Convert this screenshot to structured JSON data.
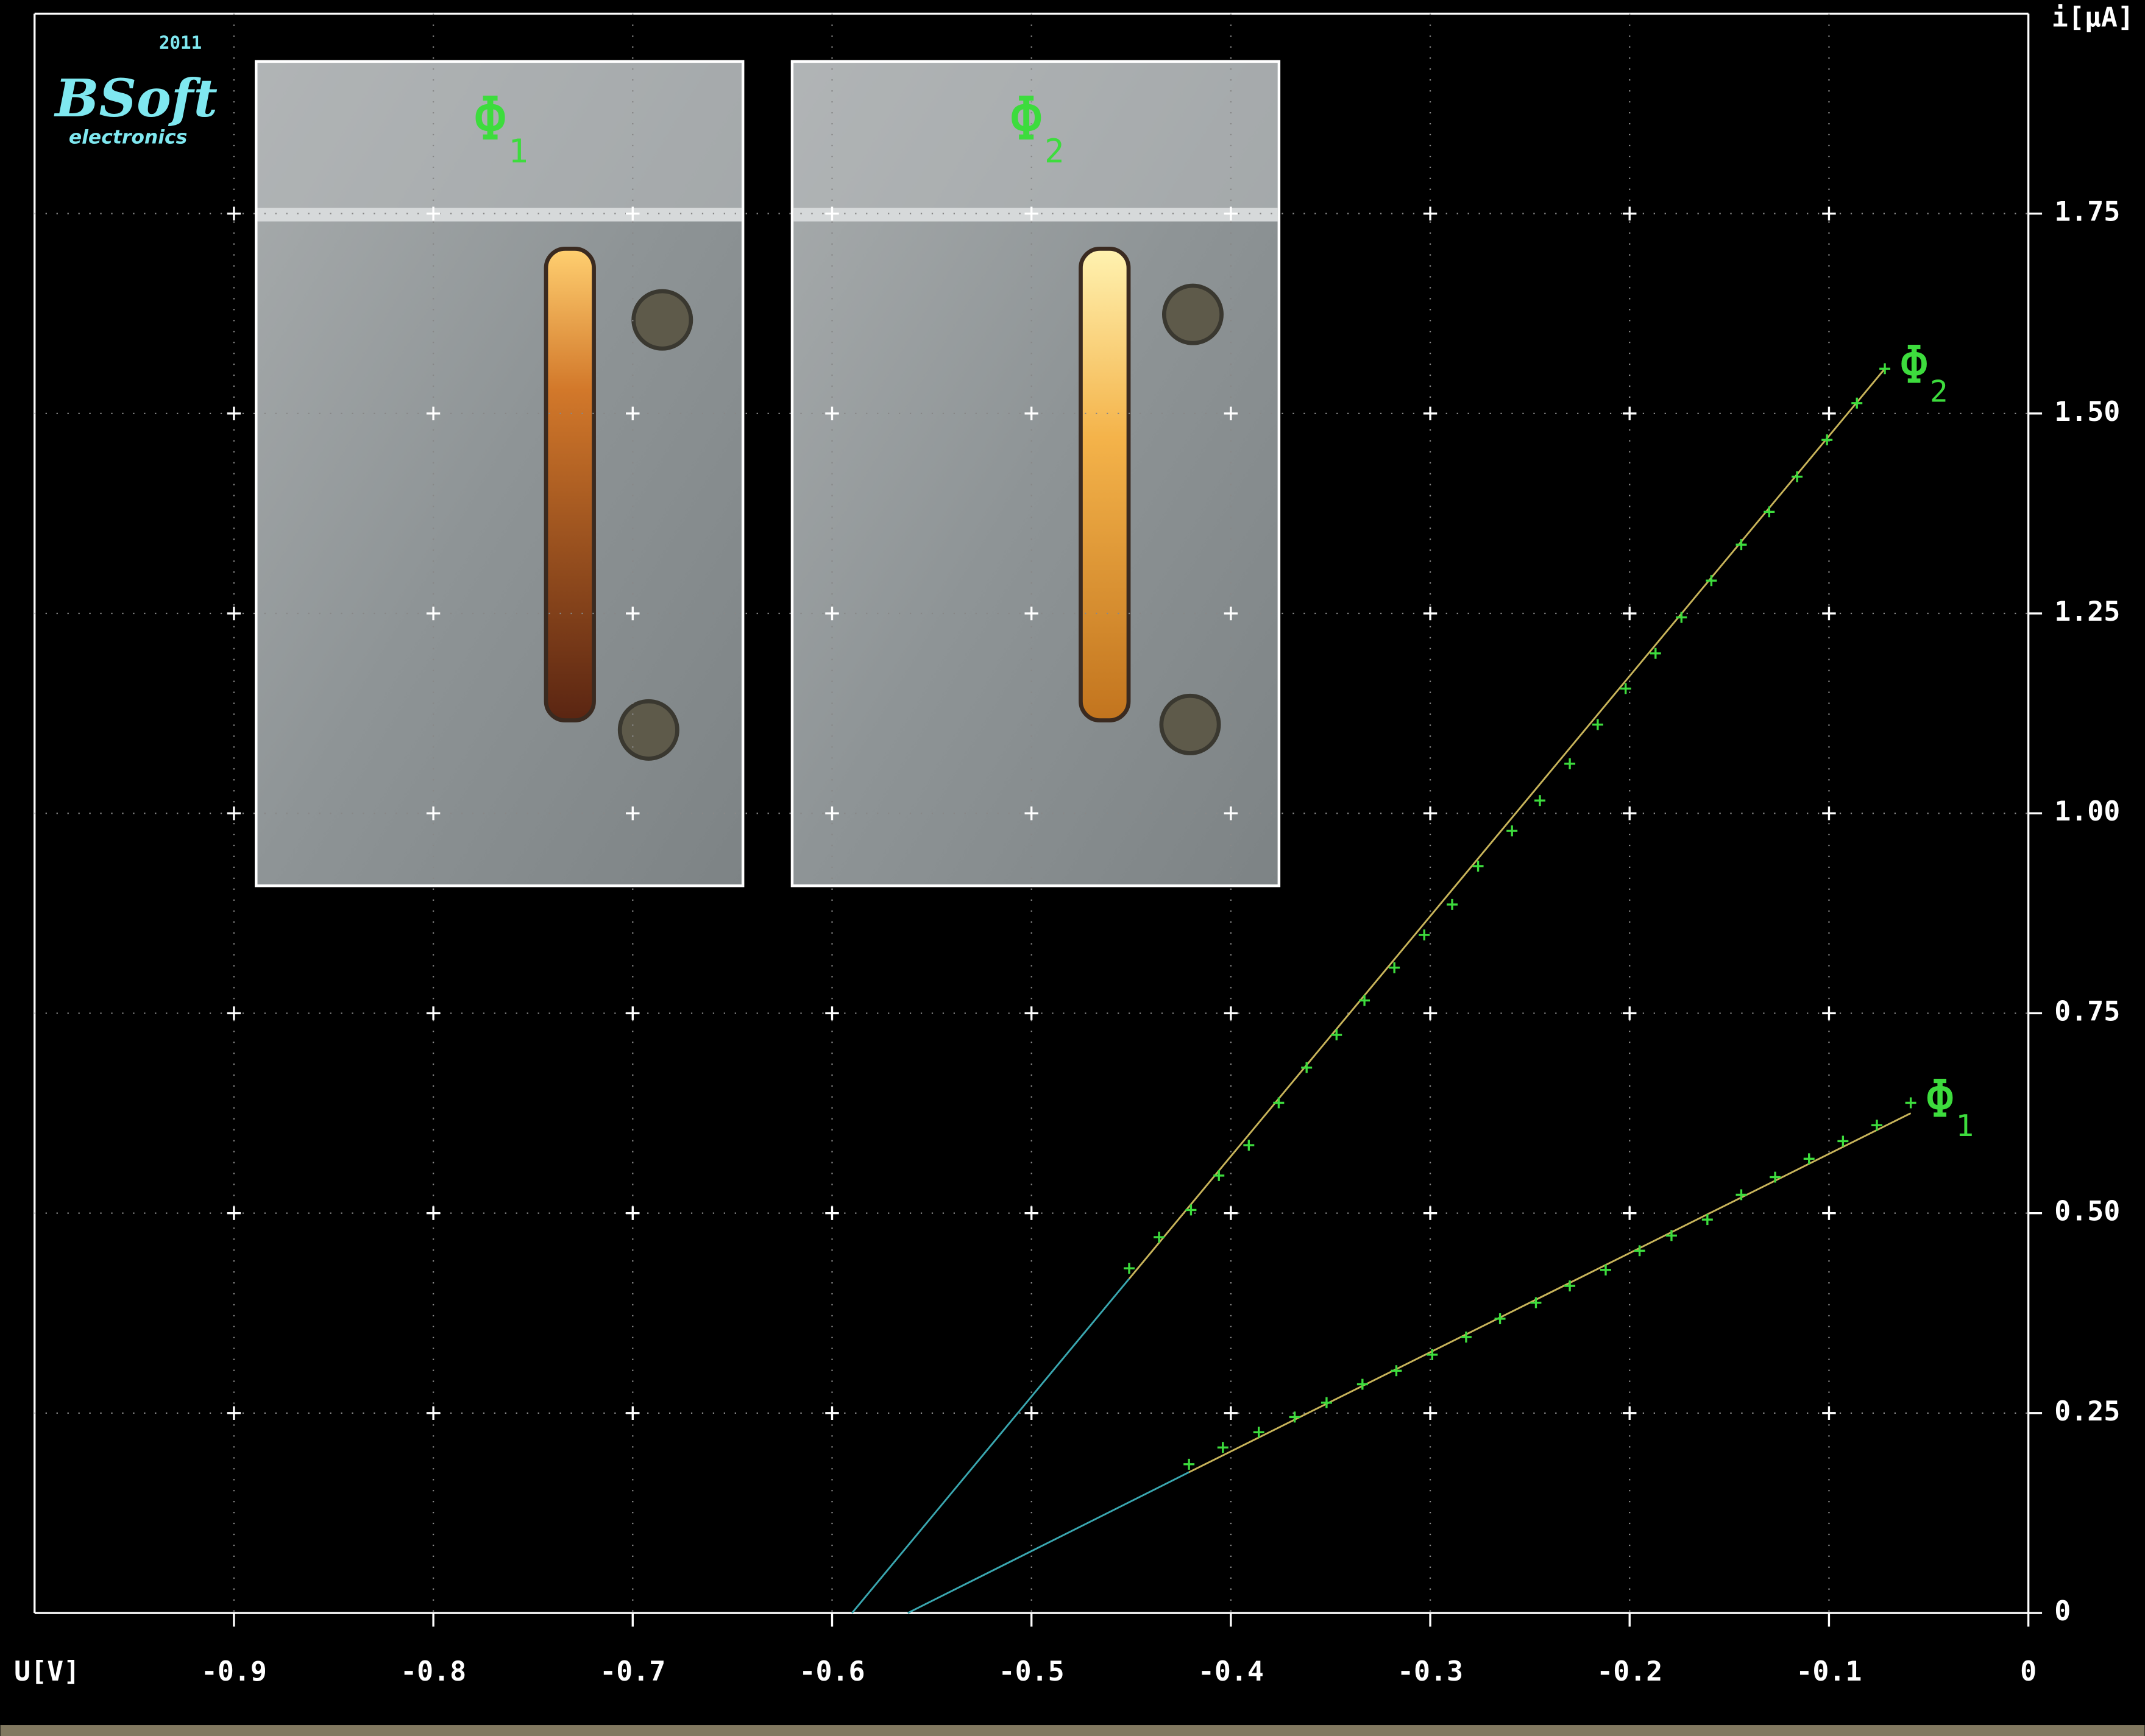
{
  "logo": {
    "year": "2011",
    "name": "BSoft",
    "tagline": "electronics"
  },
  "chart_data": {
    "type": "scatter",
    "xlabel": "U[V]",
    "ylabel": "i[μA]",
    "xlim": [
      -1,
      0
    ],
    "ylim": [
      0,
      2
    ],
    "xticks": [
      -0.9,
      -0.8,
      -0.7,
      -0.6,
      -0.5,
      -0.4,
      -0.3,
      -0.2,
      -0.1,
      0
    ],
    "yticks": [
      0,
      0.25,
      {
        "value": 0.5,
        "label": "0.50"
      },
      0.75,
      {
        "value": 1,
        "label": "1.00"
      },
      1.25,
      {
        "value": 1.5,
        "label": "1.50"
      },
      1.75
    ],
    "grid": true,
    "fit_colors": [
      "#3aa7b0",
      "#c8b45a"
    ],
    "insets": [
      {
        "label": "Φ",
        "subscript": "1"
      },
      {
        "label": "Φ",
        "subscript": "2"
      }
    ],
    "series": [
      {
        "name": "Φ",
        "subscript": "1",
        "color": "#3ddc3d",
        "x": [
          -0.421,
          -0.404,
          -0.386,
          -0.368,
          -0.352,
          -0.334,
          -0.317,
          -0.299,
          -0.282,
          -0.265,
          -0.247,
          -0.23,
          -0.212,
          -0.195,
          -0.179,
          -0.161,
          -0.144,
          -0.127,
          -0.11,
          -0.093,
          -0.076,
          -0.059
        ],
        "values": [
          0.186,
          0.207,
          0.226,
          0.245,
          0.263,
          0.286,
          0.303,
          0.323,
          0.345,
          0.368,
          0.388,
          0.409,
          0.429,
          0.453,
          0.472,
          0.492,
          0.523,
          0.545,
          0.568,
          0.59,
          0.61,
          0.638
        ],
        "fit_x": [
          -0.562,
          -0.421,
          -0.059
        ],
        "fit_y": [
          0,
          0.176,
          0.625
        ]
      },
      {
        "name": "Φ",
        "subscript": "2",
        "color": "#3ddc3d",
        "x": [
          -0.451,
          -0.436,
          -0.42,
          -0.406,
          -0.391,
          -0.376,
          -0.362,
          -0.347,
          -0.333,
          -0.318,
          -0.303,
          -0.289,
          -0.276,
          -0.259,
          -0.245,
          -0.23,
          -0.216,
          -0.202,
          -0.187,
          -0.174,
          -0.159,
          -0.144,
          -0.13,
          -0.116,
          -0.101,
          -0.086,
          -0.072
        ],
        "values": [
          0.431,
          0.47,
          0.504,
          0.547,
          0.585,
          0.638,
          0.682,
          0.723,
          0.766,
          0.807,
          0.848,
          0.886,
          0.934,
          0.978,
          1.016,
          1.062,
          1.111,
          1.156,
          1.2,
          1.245,
          1.291,
          1.336,
          1.377,
          1.421,
          1.467,
          1.513,
          1.556
        ],
        "fit_x": [
          -0.59,
          -0.451,
          -0.072
        ],
        "fit_y": [
          0,
          0.418,
          1.556
        ]
      }
    ]
  }
}
